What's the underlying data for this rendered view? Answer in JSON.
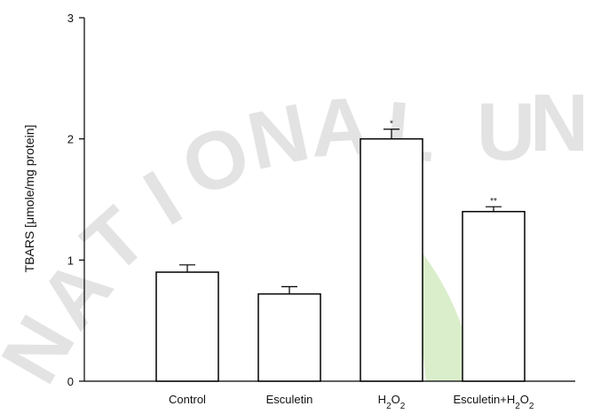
{
  "chart_data": {
    "type": "bar",
    "categories": [
      "Control",
      "Esculetin",
      "H2O2",
      "Esculetin+H2O2"
    ],
    "category_labels": [
      {
        "parts": [
          {
            "t": "Control"
          }
        ]
      },
      {
        "parts": [
          {
            "t": "Esculetin"
          }
        ]
      },
      {
        "parts": [
          {
            "t": "H"
          },
          {
            "t": "2",
            "sub": true
          },
          {
            "t": "O"
          },
          {
            "t": "2",
            "sub": true
          }
        ]
      },
      {
        "parts": [
          {
            "t": "Esculetin+H"
          },
          {
            "t": "2",
            "sub": true
          },
          {
            "t": "O"
          },
          {
            "t": "2",
            "sub": true
          }
        ]
      }
    ],
    "values": [
      0.9,
      0.72,
      2.0,
      1.4
    ],
    "errors": [
      0.06,
      0.06,
      0.08,
      0.04
    ],
    "significance": [
      "",
      "",
      "*",
      "**"
    ],
    "ylabel": "TBARS [μmole/mg protein]",
    "xlabel": "",
    "title": "",
    "ylim": [
      0,
      3
    ],
    "yticks": [
      0,
      1,
      2,
      3
    ],
    "grid": false,
    "bar_fill": "#ffffff",
    "bar_stroke": "#000000"
  },
  "watermark": {
    "text": "NATIONAL UN",
    "text_color": "#e3e3e3",
    "arc_colors": [
      "#bfe0f4",
      "#d7ecc5",
      "#e9e9e9"
    ]
  }
}
